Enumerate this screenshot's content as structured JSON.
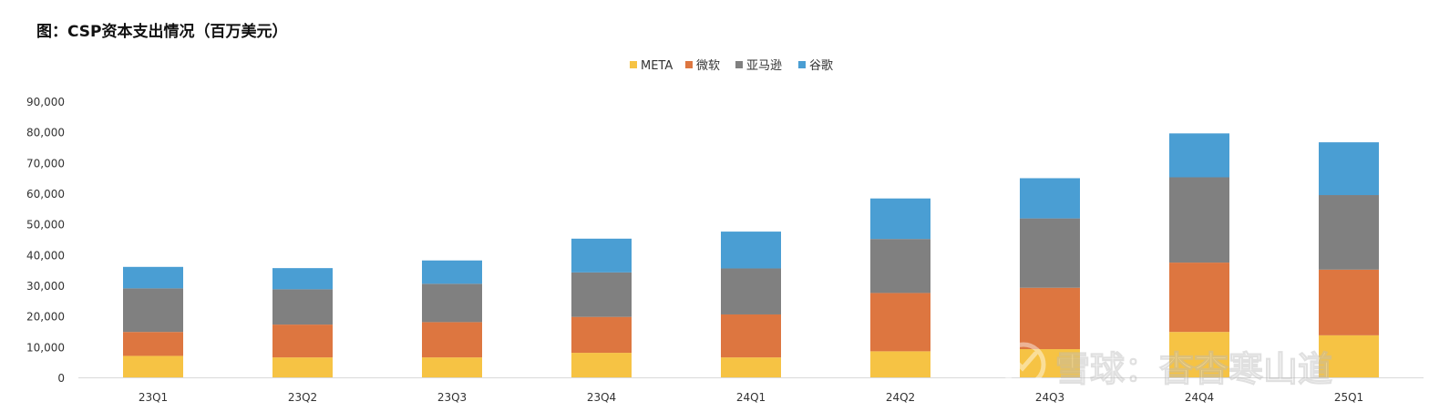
{
  "title": "图：CSP资本支出情况（百万美元）",
  "watermark": {
    "text": "雪球：杳杳寒山道"
  },
  "colors": {
    "META": "#F6C344",
    "微软": "#DD7640",
    "亚马逊": "#808080",
    "谷歌": "#4A9ED3",
    "axis": "#d9d9d9",
    "text": "#333333"
  },
  "chart_data": {
    "type": "bar",
    "stacked": true,
    "title": "",
    "xlabel": "",
    "ylabel": "",
    "ylim": [
      0,
      90000
    ],
    "y_ticks": [
      0,
      10000,
      20000,
      30000,
      40000,
      50000,
      60000,
      70000,
      80000,
      90000
    ],
    "y_tick_labels": [
      "0",
      "10,000",
      "20,000",
      "30,000",
      "40,000",
      "50,000",
      "60,000",
      "70,000",
      "80,000",
      "90,000"
    ],
    "grid": false,
    "legend_position": "top-center",
    "categories": [
      "23Q1",
      "23Q2",
      "23Q3",
      "23Q4",
      "24Q1",
      "24Q2",
      "24Q3",
      "24Q4",
      "25Q1"
    ],
    "series": [
      {
        "name": "META",
        "values": [
          7000,
          6500,
          6500,
          8000,
          6500,
          8500,
          9200,
          14800,
          13700
        ]
      },
      {
        "name": "微软",
        "values": [
          7800,
          10700,
          11500,
          11700,
          14000,
          19000,
          20000,
          22600,
          21400
        ]
      },
      {
        "name": "亚马逊",
        "values": [
          14200,
          11500,
          12500,
          14500,
          15000,
          17600,
          22600,
          27800,
          24300
        ]
      },
      {
        "name": "谷歌",
        "values": [
          7000,
          6900,
          7600,
          11000,
          12000,
          13200,
          13100,
          14300,
          17200
        ]
      }
    ]
  }
}
